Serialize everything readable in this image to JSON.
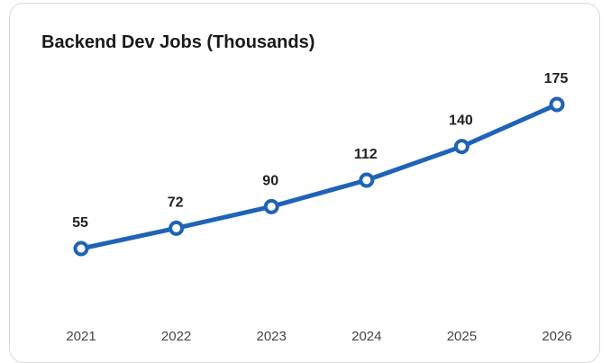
{
  "chart_data": {
    "type": "line",
    "title": "Backend Dev Jobs (Thousands)",
    "xlabel": "",
    "ylabel": "",
    "categories": [
      "2021",
      "2022",
      "2023",
      "2024",
      "2025",
      "2026"
    ],
    "series": [
      {
        "values": [
          55,
          72,
          90,
          112,
          140,
          175
        ]
      }
    ],
    "data_labels": [
      "55",
      "72",
      "90",
      "112",
      "140",
      "175"
    ],
    "show_markers": true,
    "grid": false,
    "legend": "none",
    "colors": {
      "line": "#1f63b8",
      "marker_fill": "#ffffff"
    }
  }
}
